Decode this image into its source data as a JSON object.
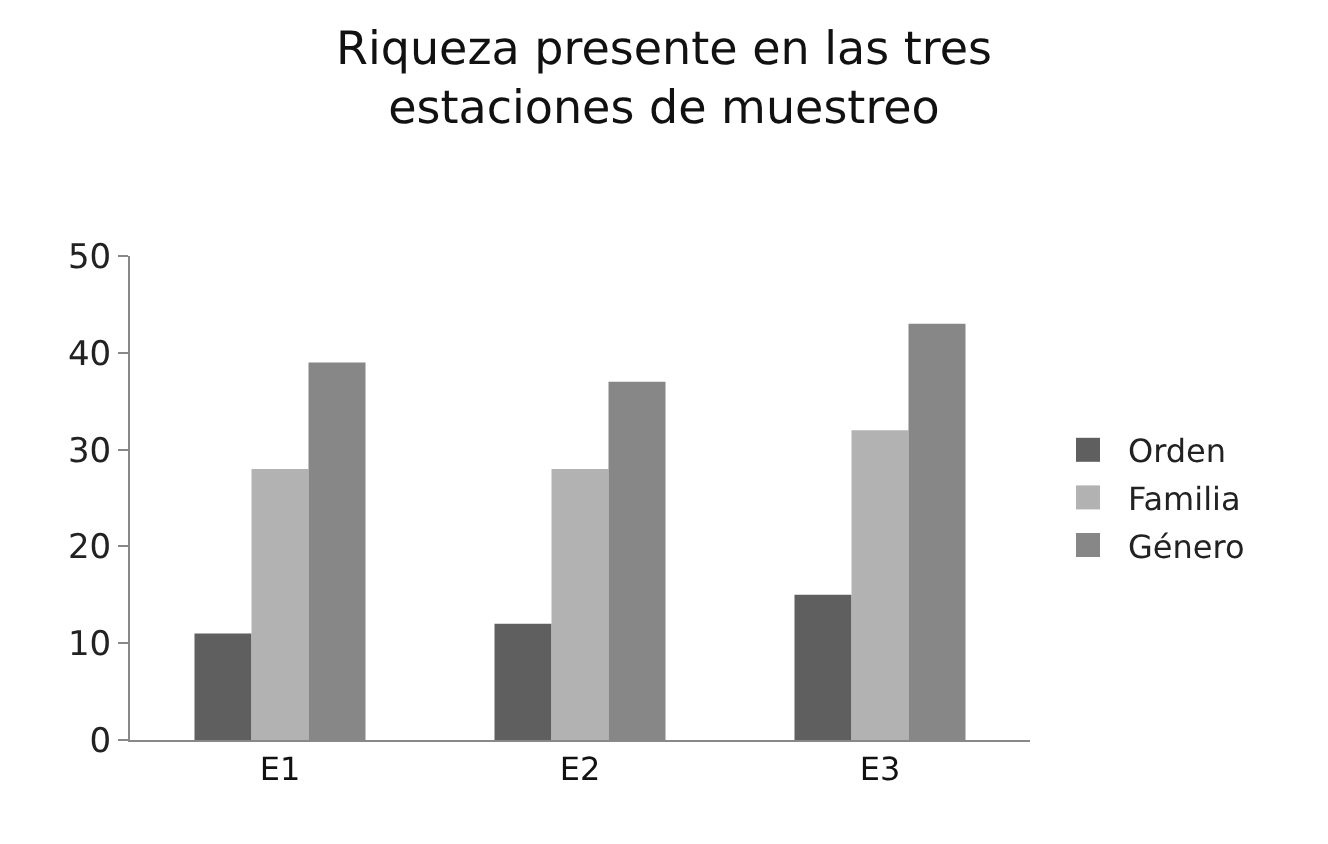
{
  "chart_data": {
    "type": "bar",
    "title": "Riqueza presente en las tres estaciones de muestreo",
    "categories": [
      "E1",
      "E2",
      "E3"
    ],
    "series": [
      {
        "name": "Orden",
        "color": "#5f5f5f",
        "values": [
          11,
          12,
          15
        ]
      },
      {
        "name": "Familia",
        "color": "#b2b2b2",
        "values": [
          28,
          28,
          32
        ]
      },
      {
        "name": "Género",
        "color": "#878787",
        "values": [
          39,
          37,
          43
        ]
      }
    ],
    "ylim": [
      0,
      50
    ],
    "yticks": [
      0,
      10,
      20,
      30,
      40,
      50
    ],
    "legend": "right"
  }
}
